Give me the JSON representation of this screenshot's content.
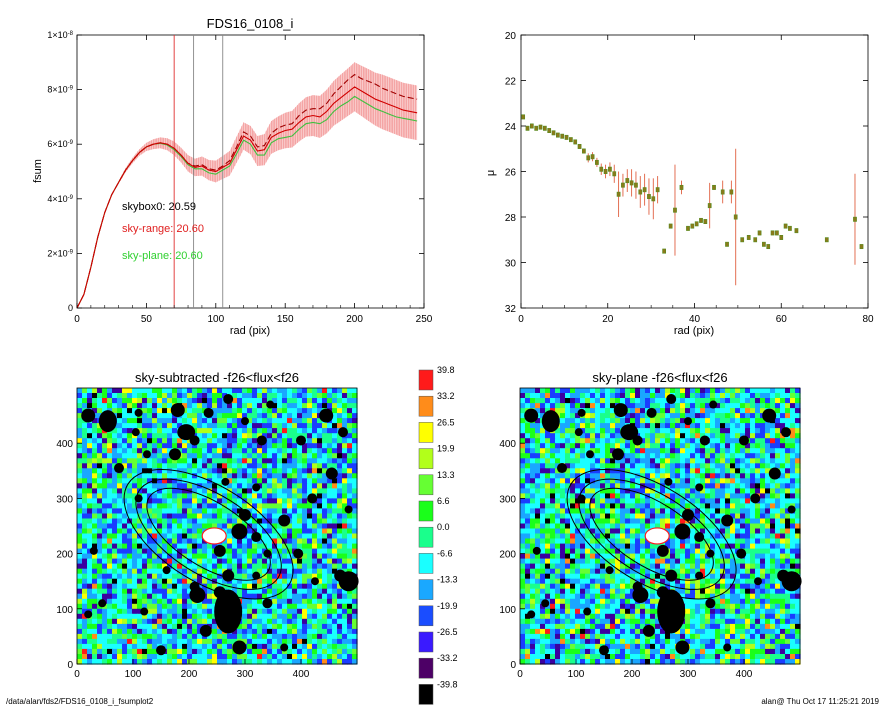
{
  "chart_data": [
    {
      "type": "line",
      "title": "FDS16_0108_i",
      "xlabel": "rad (pix)",
      "ylabel": "fsum",
      "xlim": [
        0,
        250
      ],
      "ylim": [
        0,
        1e-08
      ],
      "x_ticks": [
        "0",
        "50",
        "100",
        "150",
        "200",
        "250"
      ],
      "y_ticks": [
        {
          "value": 0,
          "mant": "0",
          "exp": ""
        },
        {
          "value": 2e-09,
          "mant": "2×10",
          "exp": "-9"
        },
        {
          "value": 4e-09,
          "mant": "4×10",
          "exp": "-9"
        },
        {
          "value": 6e-09,
          "mant": "6×10",
          "exp": "-9"
        },
        {
          "value": 8e-09,
          "mant": "8×10",
          "exp": "-9"
        },
        {
          "value": 1e-08,
          "mant": "1×10",
          "exp": "-8"
        }
      ],
      "vertical_markers": [
        {
          "x": 70,
          "color": "#e03030"
        },
        {
          "x": 84,
          "color": "#888888"
        },
        {
          "x": 105,
          "color": "#888888"
        }
      ],
      "annotations": [
        {
          "text": "skybox0: 20.59",
          "color": "#000000"
        },
        {
          "text": "sky-range: 20.60",
          "color": "#e02020"
        },
        {
          "text": "sky-plane: 20.60",
          "color": "#30d030"
        }
      ],
      "series": [
        {
          "color": "#d00000",
          "x": [
            0,
            5,
            10,
            15,
            20,
            25,
            30,
            35,
            40,
            45,
            50,
            55,
            60,
            65,
            70,
            75,
            80,
            85,
            90,
            95,
            100,
            105,
            110,
            115,
            120,
            125,
            130,
            135,
            140,
            145,
            150,
            155,
            160,
            165,
            170,
            175,
            180,
            185,
            190,
            195,
            200,
            205,
            210,
            215,
            220,
            225,
            230,
            235,
            240,
            245
          ],
          "y": [
            0,
            5e-10,
            1.5e-09,
            2.6e-09,
            3.5e-09,
            4.15e-09,
            4.6e-09,
            5.05e-09,
            5.4e-09,
            5.7e-09,
            5.9e-09,
            6e-09,
            6.05e-09,
            6e-09,
            5.85e-09,
            5.6e-09,
            5.3e-09,
            5.15e-09,
            5.2e-09,
            5.05e-09,
            5e-09,
            5.15e-09,
            5.3e-09,
            5.8e-09,
            6.3e-09,
            6.15e-09,
            5.75e-09,
            5.8e-09,
            6.25e-09,
            6.4e-09,
            6.5e-09,
            6.55e-09,
            6.8e-09,
            7e-09,
            7.05e-09,
            7e-09,
            7.2e-09,
            7.5e-09,
            7.7e-09,
            7.9e-09,
            8.1e-09,
            7.95e-09,
            7.8e-09,
            7.65e-09,
            7.55e-09,
            7.45e-09,
            7.35e-09,
            7.25e-09,
            7.2e-09,
            7.15e-09
          ]
        },
        {
          "color": "#a00000",
          "style": "dashed",
          "x": [
            0,
            5,
            10,
            15,
            20,
            25,
            30,
            35,
            40,
            45,
            50,
            55,
            60,
            65,
            70,
            75,
            80,
            85,
            90,
            95,
            100,
            105,
            110,
            115,
            120,
            125,
            130,
            135,
            140,
            145,
            150,
            155,
            160,
            165,
            170,
            175,
            180,
            185,
            190,
            195,
            200,
            205,
            210,
            215,
            220,
            225,
            230,
            235,
            240,
            245
          ],
          "y": [
            0,
            5e-10,
            1.5e-09,
            2.6e-09,
            3.5e-09,
            4.15e-09,
            4.6e-09,
            5.05e-09,
            5.4e-09,
            5.7e-09,
            5.9e-09,
            6e-09,
            6.05e-09,
            6e-09,
            5.85e-09,
            5.6e-09,
            5.3e-09,
            5.2e-09,
            5.25e-09,
            5.1e-09,
            5.05e-09,
            5.2e-09,
            5.4e-09,
            5.9e-09,
            6.45e-09,
            6.3e-09,
            5.9e-09,
            5.95e-09,
            6.4e-09,
            6.6e-09,
            6.7e-09,
            6.75e-09,
            7.05e-09,
            7.25e-09,
            7.3e-09,
            7.3e-09,
            7.5e-09,
            7.85e-09,
            8.1e-09,
            8.35e-09,
            8.55e-09,
            8.4e-09,
            8.3e-09,
            8.2e-09,
            8.05e-09,
            7.95e-09,
            7.85e-09,
            7.75e-09,
            7.7e-09,
            7.65e-09
          ]
        },
        {
          "color": "#40c040",
          "x": [
            0,
            5,
            10,
            15,
            20,
            25,
            30,
            35,
            40,
            45,
            50,
            55,
            60,
            65,
            70,
            75,
            80,
            85,
            90,
            95,
            100,
            105,
            110,
            115,
            120,
            125,
            130,
            135,
            140,
            145,
            150,
            155,
            160,
            165,
            170,
            175,
            180,
            185,
            190,
            195,
            200,
            205,
            210,
            215,
            220,
            225,
            230,
            235,
            240,
            245
          ],
          "y": [
            0,
            5e-10,
            1.5e-09,
            2.6e-09,
            3.5e-09,
            4.15e-09,
            4.6e-09,
            5.05e-09,
            5.4e-09,
            5.7e-09,
            5.9e-09,
            6e-09,
            6.03e-09,
            5.97e-09,
            5.8e-09,
            5.55e-09,
            5.25e-09,
            5.1e-09,
            5.1e-09,
            4.95e-09,
            4.9e-09,
            5.05e-09,
            5.2e-09,
            5.65e-09,
            6.15e-09,
            6e-09,
            5.6e-09,
            5.6e-09,
            6.05e-09,
            6.2e-09,
            6.25e-09,
            6.3e-09,
            6.55e-09,
            6.75e-09,
            6.8e-09,
            6.75e-09,
            6.9e-09,
            7.2e-09,
            7.4e-09,
            7.55e-09,
            7.75e-09,
            7.6e-09,
            7.45e-09,
            7.3e-09,
            7.2e-09,
            7.1e-09,
            7e-09,
            6.95e-09,
            6.9e-09,
            6.85e-09
          ]
        }
      ],
      "error_band": {
        "x": [
          0,
          5,
          10,
          15,
          20,
          25,
          30,
          35,
          40,
          45,
          50,
          55,
          60,
          65,
          70,
          75,
          80,
          85,
          90,
          95,
          100,
          105,
          110,
          115,
          120,
          125,
          130,
          135,
          140,
          145,
          150,
          155,
          160,
          165,
          170,
          175,
          180,
          185,
          190,
          195,
          200,
          205,
          210,
          215,
          220,
          225,
          230,
          235,
          240,
          245
        ],
        "half_width": [
          0,
          0,
          0,
          0,
          0,
          0,
          5e-11,
          8e-11,
          1e-10,
          1.2e-10,
          1.5e-10,
          1.8e-10,
          2e-10,
          2.2e-10,
          2.5e-10,
          2.7e-10,
          3e-10,
          3.2e-10,
          3.5e-10,
          3.7e-10,
          4e-10,
          4.2e-10,
          4.5e-10,
          4.8e-10,
          5e-10,
          5.2e-10,
          5.5e-10,
          5.7e-10,
          6e-10,
          6.2e-10,
          6.5e-10,
          6.7e-10,
          7e-10,
          7.2e-10,
          7.5e-10,
          7.7e-10,
          8e-10,
          8.2e-10,
          8.5e-10,
          8.7e-10,
          9e-10,
          9.2e-10,
          9.5e-10,
          9.7e-10,
          1e-09,
          1e-09,
          1e-09,
          1e-09,
          1e-09,
          1e-09
        ]
      }
    },
    {
      "type": "scatter",
      "title": "",
      "xlabel": "rad (pix)",
      "ylabel": "μ",
      "xlim": [
        0,
        80
      ],
      "ylim": [
        32,
        20
      ],
      "x_ticks": [
        "0",
        "20",
        "40",
        "60",
        "80"
      ],
      "y_ticks": [
        "20",
        "22",
        "24",
        "26",
        "28",
        "30",
        "32"
      ],
      "points": [
        {
          "x": 0.5,
          "y": 23.6,
          "err": 0.1
        },
        {
          "x": 1.5,
          "y": 24.1,
          "err": 0.1
        },
        {
          "x": 2.5,
          "y": 24.0,
          "err": 0.1
        },
        {
          "x": 3.5,
          "y": 24.1,
          "err": 0.1
        },
        {
          "x": 4.5,
          "y": 24.05,
          "err": 0.1
        },
        {
          "x": 5.5,
          "y": 24.1,
          "err": 0.1
        },
        {
          "x": 6.5,
          "y": 24.2,
          "err": 0.1
        },
        {
          "x": 7.5,
          "y": 24.3,
          "err": 0.1
        },
        {
          "x": 8.5,
          "y": 24.4,
          "err": 0.1
        },
        {
          "x": 9.5,
          "y": 24.45,
          "err": 0.1
        },
        {
          "x": 10.5,
          "y": 24.5,
          "err": 0.1
        },
        {
          "x": 11.5,
          "y": 24.6,
          "err": 0.1
        },
        {
          "x": 12.5,
          "y": 24.7,
          "err": 0.15
        },
        {
          "x": 13.5,
          "y": 24.9,
          "err": 0.15
        },
        {
          "x": 14.5,
          "y": 25.1,
          "err": 0.15
        },
        {
          "x": 15.5,
          "y": 25.4,
          "err": 0.2
        },
        {
          "x": 16.5,
          "y": 25.35,
          "err": 0.2
        },
        {
          "x": 17.5,
          "y": 25.6,
          "err": 0.2
        },
        {
          "x": 18.5,
          "y": 25.9,
          "err": 0.25
        },
        {
          "x": 19.5,
          "y": 26.0,
          "err": 0.3
        },
        {
          "x": 20.5,
          "y": 25.9,
          "err": 0.3
        },
        {
          "x": 21.5,
          "y": 26.1,
          "err": 0.4
        },
        {
          "x": 22.5,
          "y": 27.0,
          "err": 1.0
        },
        {
          "x": 23.5,
          "y": 26.6,
          "err": 0.5
        },
        {
          "x": 24.5,
          "y": 26.4,
          "err": 0.5
        },
        {
          "x": 25.5,
          "y": 26.5,
          "err": 0.6
        },
        {
          "x": 26.5,
          "y": 26.6,
          "err": 0.6
        },
        {
          "x": 27.5,
          "y": 26.9,
          "err": 0.7
        },
        {
          "x": 28.5,
          "y": 26.8,
          "err": 0.7
        },
        {
          "x": 29.5,
          "y": 27.1,
          "err": 0.8
        },
        {
          "x": 30.5,
          "y": 27.2,
          "err": 0.9
        },
        {
          "x": 31.5,
          "y": 26.8,
          "err": 0.6
        },
        {
          "x": 33.0,
          "y": 29.5,
          "err": 0.1
        },
        {
          "x": 34.5,
          "y": 28.4,
          "err": 0.1
        },
        {
          "x": 35.5,
          "y": 27.7,
          "err": 2.0
        },
        {
          "x": 37.0,
          "y": 26.7,
          "err": 0.3
        },
        {
          "x": 38.5,
          "y": 28.5,
          "err": 0.1
        },
        {
          "x": 39.5,
          "y": 28.4,
          "err": 0.1
        },
        {
          "x": 40.5,
          "y": 28.3,
          "err": 0.1
        },
        {
          "x": 41.5,
          "y": 28.15,
          "err": 0.1
        },
        {
          "x": 42.5,
          "y": 28.2,
          "err": 0.1
        },
        {
          "x": 43.5,
          "y": 27.5,
          "err": 1.0
        },
        {
          "x": 44.5,
          "y": 26.7,
          "err": 0.1
        },
        {
          "x": 46.5,
          "y": 26.9,
          "err": 0.5
        },
        {
          "x": 47.5,
          "y": 29.2,
          "err": 0.1
        },
        {
          "x": 48.5,
          "y": 26.9,
          "err": 0.5
        },
        {
          "x": 49.5,
          "y": 28.0,
          "err": 3.0
        },
        {
          "x": 51.0,
          "y": 29.0,
          "err": 0.1
        },
        {
          "x": 52.5,
          "y": 28.9,
          "err": 0.1
        },
        {
          "x": 54.0,
          "y": 29.0,
          "err": 0.1
        },
        {
          "x": 55.0,
          "y": 28.7,
          "err": 0.1
        },
        {
          "x": 56.0,
          "y": 29.2,
          "err": 0.1
        },
        {
          "x": 57.0,
          "y": 29.3,
          "err": 0.1
        },
        {
          "x": 58.0,
          "y": 28.7,
          "err": 0.1
        },
        {
          "x": 59.0,
          "y": 28.7,
          "err": 0.1
        },
        {
          "x": 60.0,
          "y": 28.9,
          "err": 0.1
        },
        {
          "x": 61.0,
          "y": 28.4,
          "err": 0.1
        },
        {
          "x": 62.0,
          "y": 28.5,
          "err": 0.1
        },
        {
          "x": 63.5,
          "y": 28.6,
          "err": 0.1
        },
        {
          "x": 70.5,
          "y": 29.0,
          "err": 0.1
        },
        {
          "x": 77.0,
          "y": 28.1,
          "err": 2.0
        },
        {
          "x": 78.5,
          "y": 29.3,
          "err": 0.1
        }
      ]
    },
    {
      "type": "heatmap",
      "title": "sky-subtracted -f26<flux<f26",
      "xlim": [
        0,
        500
      ],
      "ylim": [
        0,
        500
      ],
      "x_ticks": [
        "0",
        "100",
        "200",
        "300",
        "400"
      ],
      "y_ticks": [
        "0",
        "100",
        "200",
        "300",
        "400"
      ],
      "seed": 7
    },
    {
      "type": "heatmap",
      "title": "sky-plane -f26<flux<f26",
      "xlim": [
        0,
        500
      ],
      "ylim": [
        0,
        500
      ],
      "x_ticks": [
        "0",
        "100",
        "200",
        "300",
        "400"
      ],
      "y_ticks": [
        "0",
        "100",
        "200",
        "300",
        "400"
      ],
      "seed": 11
    }
  ],
  "colorbar": {
    "labels": [
      "39.8",
      "33.2",
      "26.5",
      "19.9",
      "13.3",
      "6.6",
      "0.0",
      "-6.6",
      "-13.3",
      "-19.9",
      "-26.5",
      "-33.2",
      "-39.8"
    ],
    "colors": [
      "#ff1a1a",
      "#ff8c1a",
      "#ffff00",
      "#b2ff1a",
      "#66ff33",
      "#1aff1a",
      "#1aff8c",
      "#1affff",
      "#1aa8ff",
      "#1a4dff",
      "#3a1aff",
      "#4d0066",
      "#000000"
    ]
  },
  "footer": {
    "path": "/data/alan/fds2/FDS16_0108_i_fsumplot2",
    "stamp": "alan@  Thu Oct 17 11:25:21 2019"
  },
  "image_palette": [
    "#000000",
    "#3b00a0",
    "#1a3dff",
    "#1aa6ff",
    "#1affff",
    "#1aff8c",
    "#1aff1a",
    "#66ff33",
    "#b2ff1a",
    "#ffff00",
    "#ff8c1a",
    "#ff1a1a"
  ]
}
